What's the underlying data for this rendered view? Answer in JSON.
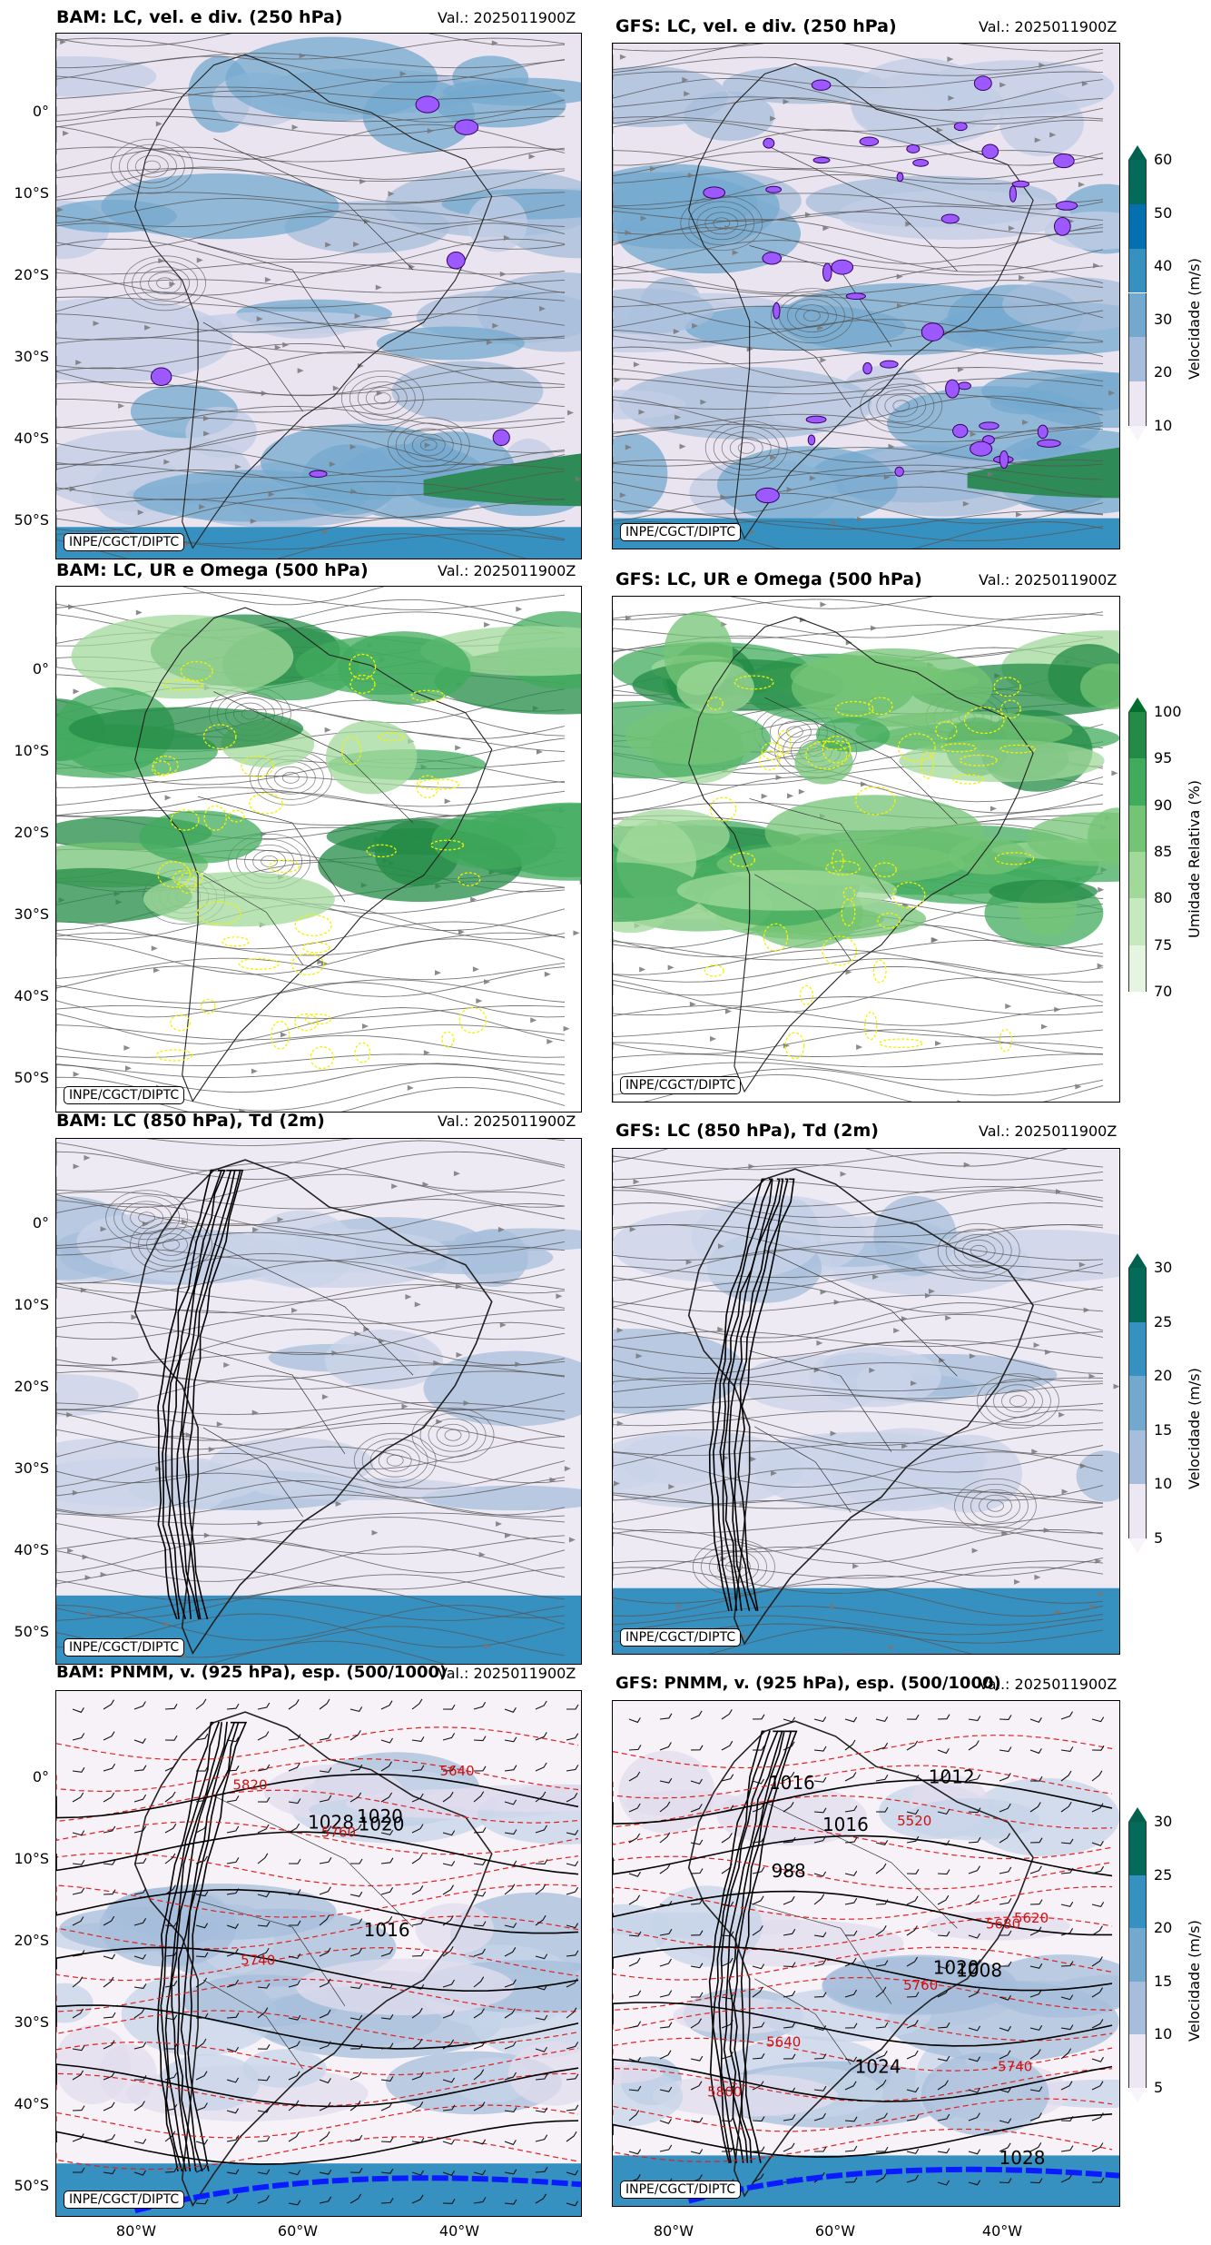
{
  "panels": [
    {
      "id": "p1",
      "title": "BAM: LC, vel. e div. (250 hPa)",
      "valid": "Val.: 2025011900Z",
      "credit": "INPE/CGCT/DIPTC",
      "kind": "wind250"
    },
    {
      "id": "p2",
      "title": "GFS: LC, vel. e div. (250 hPa)",
      "valid": "Val.: 2025011900Z",
      "credit": "INPE/CGCT/DIPTC",
      "kind": "wind250"
    },
    {
      "id": "p3",
      "title": "BAM: LC, UR e Omega (500 hPa)",
      "valid": "Val.: 2025011900Z",
      "credit": "INPE/CGCT/DIPTC",
      "kind": "rh500"
    },
    {
      "id": "p4",
      "title": "GFS: LC, UR e Omega (500 hPa)",
      "valid": "Val.: 2025011900Z",
      "credit": "INPE/CGCT/DIPTC",
      "kind": "rh500"
    },
    {
      "id": "p5",
      "title": "BAM: LC (850 hPa), Td (2m)",
      "valid": "Val.: 2025011900Z",
      "credit": "INPE/CGCT/DIPTC",
      "kind": "wind850"
    },
    {
      "id": "p6",
      "title": "GFS: LC (850 hPa), Td (2m)",
      "valid": "Val.: 2025011900Z",
      "credit": "INPE/CGCT/DIPTC",
      "kind": "wind850"
    },
    {
      "id": "p7",
      "title": "BAM: PNMM, v. (925 hPa), esp. (500/1000)",
      "valid": "Val.: 2025011900Z",
      "credit": "INPE/CGCT/DIPTC",
      "kind": "pnmm"
    },
    {
      "id": "p8",
      "title": "GFS: PNMM, v. (925 hPa), esp. (500/1000)",
      "valid": "Val.: 2025011900Z",
      "credit": "INPE/CGCT/DIPTC",
      "kind": "pnmm"
    }
  ],
  "lat_labels": [
    "0°",
    "10°S",
    "20°S",
    "30°S",
    "40°S",
    "50°S"
  ],
  "lon_labels": [
    "80°W",
    "60°W",
    "40°W"
  ],
  "colorbars": [
    {
      "id": "cb1",
      "title": "Velocidade (m/s)",
      "ticks": [
        "10",
        "20",
        "30",
        "40",
        "50",
        "60"
      ],
      "colors": [
        "#ece7f2",
        "#a6bddb",
        "#74a9cf",
        "#3690c0",
        "#0570b0",
        "#046a5a"
      ],
      "extend_top": "#02604f",
      "extend_bot": "#f7f4fa"
    },
    {
      "id": "cb2",
      "title": "Umidade Relativa (%)",
      "ticks": [
        "70",
        "75",
        "80",
        "85",
        "90",
        "95",
        "100"
      ],
      "colors": [
        "#e5f5e0",
        "#c7e9c0",
        "#a1d99b",
        "#74c476",
        "#41ab5d",
        "#238b45"
      ],
      "extend_top": "#006d2c",
      "extend_bot": "#ffffff"
    },
    {
      "id": "cb3",
      "title": "Velocidade (m/s)",
      "ticks": [
        "5",
        "10",
        "15",
        "20",
        "25",
        "30"
      ],
      "colors": [
        "#ece7f2",
        "#a6bddb",
        "#74a9cf",
        "#3690c0",
        "#046a5a"
      ],
      "extend_top": "#02604f",
      "extend_bot": "#f7f4fa"
    },
    {
      "id": "cb4",
      "title": "Velocidade (m/s)",
      "ticks": [
        "5",
        "10",
        "15",
        "20",
        "25",
        "30"
      ],
      "colors": [
        "#ece7f2",
        "#a6bddb",
        "#74a9cf",
        "#3690c0",
        "#046a5a"
      ],
      "extend_top": "#02604f",
      "extend_bot": "#f7f4fa"
    }
  ],
  "contour_labels_p7": [
    "5820",
    "5640",
    "5740",
    "1016",
    "1020",
    "1020",
    "1028",
    "5760"
  ],
  "contour_labels_p8": [
    "1016",
    "-5740",
    "1012",
    "1016",
    "1024",
    "5760",
    "5800",
    "5680",
    "5620",
    "5640",
    "5520",
    "1008",
    "1028",
    "1020",
    "988"
  ]
}
